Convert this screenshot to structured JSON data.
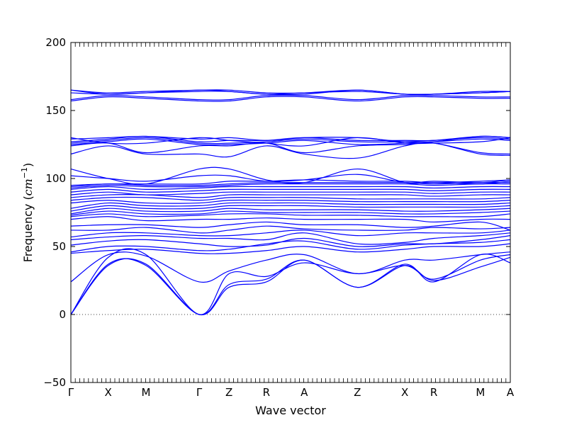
{
  "chart_data": {
    "type": "line",
    "xlabel": "Wave vector",
    "ylabel_prefix": "Frequency (",
    "ylabel_unit_base": "cm",
    "ylabel_unit_exp": "−1",
    "ylabel_suffix": ")",
    "ylim": [
      -50,
      200
    ],
    "yticks": [
      -50,
      0,
      50,
      100,
      150,
      200
    ],
    "xlim": [
      0,
      1
    ],
    "q_points": [
      {
        "label": "Γ",
        "x": 0.0
      },
      {
        "label": "X",
        "x": 0.085
      },
      {
        "label": "M",
        "x": 0.171
      },
      {
        "label": "Γ",
        "x": 0.292
      },
      {
        "label": "Z",
        "x": 0.36
      },
      {
        "label": "R",
        "x": 0.445
      },
      {
        "label": "A",
        "x": 0.531
      },
      {
        "label": "Z",
        "x": 0.652
      },
      {
        "label": "X",
        "x": 0.76
      },
      {
        "label": "R",
        "x": 0.826
      },
      {
        "label": "M",
        "x": 0.932
      },
      {
        "label": "A",
        "x": 1.0
      }
    ],
    "zero_line": {
      "y": 0,
      "style": "dotted"
    },
    "line_color": "#0000ff",
    "series": [
      {
        "y": [
          0,
          36,
          37,
          0,
          20,
          24,
          40,
          20,
          37,
          24,
          44,
          38
        ]
      },
      {
        "y": [
          0,
          37,
          36,
          0,
          22,
          26,
          40,
          20,
          36,
          25,
          35,
          42
        ]
      },
      {
        "y": [
          0,
          42,
          44,
          0,
          30,
          28,
          38,
          30,
          36,
          26,
          40,
          44
        ]
      },
      {
        "y": [
          24,
          44,
          43,
          24,
          32,
          40,
          44,
          30,
          40,
          40,
          44,
          46
        ]
      },
      {
        "y": [
          45,
          47,
          48,
          45,
          45,
          47,
          50,
          46,
          48,
          50,
          50,
          52
        ]
      },
      {
        "y": [
          46,
          50,
          50,
          47,
          48,
          52,
          54,
          48,
          51,
          52,
          53,
          55
        ]
      },
      {
        "y": [
          51,
          54,
          55,
          52,
          50,
          51,
          56,
          50,
          52,
          52,
          55,
          58
        ]
      },
      {
        "y": [
          55,
          57,
          58,
          56,
          56,
          55,
          60,
          52,
          53,
          56,
          58,
          60
        ]
      },
      {
        "y": [
          57,
          60,
          60,
          58,
          58,
          60,
          62,
          58,
          60,
          60,
          60,
          62
        ]
      },
      {
        "y": [
          62,
          62,
          64,
          60,
          62,
          65,
          63,
          62,
          62,
          64,
          63,
          64
        ]
      },
      {
        "y": [
          65,
          66,
          66,
          64,
          66,
          68,
          66,
          66,
          64,
          65,
          68,
          62
        ]
      },
      {
        "y": [
          70,
          72,
          69,
          70,
          70,
          71,
          70,
          70,
          70,
          68,
          70,
          70
        ]
      },
      {
        "y": [
          72,
          74,
          72,
          73,
          74,
          74,
          73,
          73,
          72,
          72,
          72,
          74
        ]
      },
      {
        "y": [
          73,
          76,
          74,
          74,
          76,
          75,
          75,
          75,
          74,
          74,
          75,
          76
        ]
      },
      {
        "y": [
          74,
          78,
          76,
          76,
          78,
          77,
          77,
          77,
          76,
          76,
          77,
          78
        ]
      },
      {
        "y": [
          76,
          80,
          78,
          78,
          80,
          80,
          80,
          79,
          79,
          79,
          79,
          80
        ]
      },
      {
        "y": [
          78,
          82,
          80,
          80,
          82,
          82,
          82,
          81,
          81,
          81,
          81,
          82
        ]
      },
      {
        "y": [
          82,
          84,
          82,
          82,
          84,
          84,
          84,
          83,
          83,
          83,
          83,
          84
        ]
      },
      {
        "y": [
          84,
          86,
          86,
          84,
          86,
          86,
          86,
          85,
          85,
          85,
          85,
          86
        ]
      },
      {
        "y": [
          86,
          88,
          88,
          86,
          88,
          88,
          88,
          88,
          88,
          87,
          88,
          88
        ]
      },
      {
        "y": [
          88,
          90,
          88,
          89,
          90,
          90,
          90,
          90,
          90,
          89,
          90,
          90
        ]
      },
      {
        "y": [
          90,
          92,
          90,
          91,
          92,
          92,
          92,
          92,
          92,
          91,
          92,
          92
        ]
      },
      {
        "y": [
          92,
          94,
          92,
          93,
          94,
          94,
          94,
          94,
          94,
          93,
          94,
          94
        ]
      },
      {
        "y": [
          93,
          95,
          94,
          94,
          95,
          96,
          96,
          96,
          96,
          95,
          96,
          96
        ]
      },
      {
        "y": [
          94,
          96,
          95,
          95,
          96,
          97,
          97,
          97,
          97,
          96,
          97,
          97
        ]
      },
      {
        "y": [
          95,
          96,
          96,
          96,
          98,
          98,
          99,
          98,
          98,
          97,
          98,
          99
        ]
      },
      {
        "y": [
          102,
          100,
          98,
          102,
          102,
          98,
          99,
          103,
          97,
          98,
          97,
          99
        ]
      },
      {
        "y": [
          107,
          100,
          96,
          107,
          107,
          99,
          97,
          107,
          97,
          97,
          96,
          98
        ]
      },
      {
        "y": [
          118,
          124,
          118,
          118,
          116,
          124,
          118,
          115,
          124,
          126,
          118,
          117
        ]
      },
      {
        "y": [
          124,
          126,
          119,
          124,
          124,
          126,
          119,
          124,
          125,
          126,
          119,
          118
        ]
      },
      {
        "y": [
          125,
          127,
          129,
          125,
          125,
          126,
          128,
          125,
          126,
          127,
          129,
          128
        ]
      },
      {
        "y": [
          126,
          128,
          130,
          126,
          126,
          127,
          129,
          127,
          127,
          128,
          130,
          129
        ]
      },
      {
        "y": [
          127,
          129,
          131,
          127,
          128,
          128,
          130,
          128,
          128,
          128,
          131,
          130
        ]
      },
      {
        "y": [
          129,
          130,
          131,
          129,
          130,
          128,
          130,
          130,
          127,
          127,
          131,
          130
        ]
      },
      {
        "y": [
          130,
          126,
          126,
          130,
          128,
          126,
          124,
          130,
          126,
          126,
          127,
          130
        ]
      },
      {
        "y": [
          157,
          160,
          159,
          157,
          157,
          160,
          160,
          157,
          160,
          160,
          159,
          159
        ]
      },
      {
        "y": [
          158,
          161,
          160,
          158,
          158,
          161,
          161,
          158,
          161,
          161,
          160,
          160
        ]
      },
      {
        "y": [
          163,
          162,
          163,
          164,
          164,
          162,
          163,
          164,
          162,
          162,
          163,
          164
        ]
      },
      {
        "y": [
          165,
          163,
          164,
          165,
          165,
          163,
          163,
          165,
          162,
          162,
          164,
          164
        ]
      },
      {
        "y": [
          165,
          162,
          163,
          165,
          164,
          162,
          162,
          165,
          162,
          162,
          163,
          164
        ]
      }
    ]
  }
}
